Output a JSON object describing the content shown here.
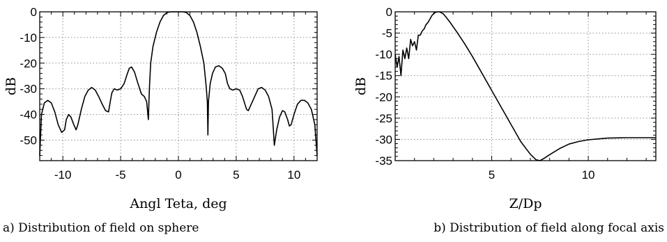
{
  "captions": {
    "left": "a) Distribution of field on sphere",
    "right": "b) Distribution of field along focal axis"
  },
  "chart_data": [
    {
      "type": "line",
      "title": "",
      "xlabel": "Angl  Teta, deg",
      "ylabel": "dB",
      "xlim": [
        -12,
        12
      ],
      "ylim": [
        -58,
        0
      ],
      "xticks": [
        -10,
        -5,
        0,
        5,
        10
      ],
      "xtick_labels": [
        "-10",
        "-5",
        "0",
        "5",
        "10"
      ],
      "yticks": [
        0,
        -10,
        -20,
        -30,
        -40,
        -50
      ],
      "ytick_labels": [
        "0",
        "-10",
        "-20",
        "-30",
        "-40",
        "-50"
      ],
      "grid": true,
      "series": [
        {
          "x": [
            -12.0,
            -11.85,
            -11.6,
            -11.3,
            -11.0,
            -10.7,
            -10.4,
            -10.1,
            -9.85,
            -9.7,
            -9.5,
            -9.3,
            -9.05,
            -8.85,
            -8.7,
            -8.55,
            -8.4,
            -8.1,
            -7.8,
            -7.5,
            -7.2,
            -6.9,
            -6.6,
            -6.3,
            -6.05,
            -5.9,
            -5.75,
            -5.55,
            -5.3,
            -5.0,
            -4.7,
            -4.45,
            -4.25,
            -4.05,
            -3.8,
            -3.5,
            -3.2,
            -2.95,
            -2.75,
            -2.6,
            -2.55,
            -2.5,
            -2.4,
            -2.2,
            -1.9,
            -1.6,
            -1.3,
            -1.0,
            -0.7,
            -0.4,
            -0.2,
            0.0,
            0.2,
            0.4,
            0.7,
            1.0,
            1.3,
            1.6,
            1.9,
            2.2,
            2.4,
            2.5,
            2.55,
            2.6,
            2.75,
            2.95,
            3.2,
            3.5,
            3.8,
            4.05,
            4.25,
            4.45,
            4.7,
            5.0,
            5.3,
            5.55,
            5.75,
            5.9,
            6.05,
            6.3,
            6.6,
            6.9,
            7.2,
            7.5,
            7.8,
            8.1,
            8.2,
            8.3,
            8.5,
            8.75,
            9.0,
            9.2,
            9.45,
            9.6,
            9.75,
            10.0,
            10.3,
            10.6,
            10.9,
            11.2,
            11.5,
            11.8,
            12.0
          ],
          "y": [
            -56,
            -40,
            -35.5,
            -34.5,
            -35.5,
            -39,
            -44,
            -47,
            -46,
            -42,
            -40,
            -41,
            -44,
            -46,
            -44,
            -41,
            -38,
            -33,
            -30.5,
            -29.5,
            -30.5,
            -33,
            -36,
            -38.5,
            -39,
            -35,
            -31.5,
            -30,
            -30.5,
            -30,
            -28,
            -24.5,
            -22,
            -21.5,
            -23.5,
            -28,
            -32,
            -33,
            -35,
            -42,
            -35,
            -29,
            -20,
            -13.5,
            -8,
            -4,
            -1.5,
            -0.3,
            0,
            0,
            0,
            0,
            0,
            0,
            -0.3,
            -1.5,
            -4,
            -8,
            -13.5,
            -20,
            -29,
            -35,
            -48,
            -35,
            -28,
            -24,
            -21.5,
            -21,
            -22,
            -24,
            -28,
            -30,
            -30.5,
            -30,
            -30.5,
            -33,
            -36,
            -38,
            -38.5,
            -36,
            -33,
            -30,
            -29.5,
            -30.5,
            -33,
            -38,
            -45,
            -52,
            -46,
            -41,
            -38.5,
            -39,
            -42,
            -44.5,
            -44,
            -40,
            -36,
            -34.5,
            -34.5,
            -35.5,
            -38,
            -44,
            -56
          ]
        }
      ]
    },
    {
      "type": "line",
      "title": "",
      "xlabel": "Z/Dp",
      "ylabel": "dB",
      "xlim": [
        0,
        13.5
      ],
      "ylim": [
        -35,
        0
      ],
      "xticks": [
        5,
        10
      ],
      "xtick_labels": [
        "5",
        "10"
      ],
      "yticks": [
        0,
        -5,
        -10,
        -15,
        -20,
        -25,
        -30,
        -35
      ],
      "ytick_labels": [
        "0",
        "-5",
        "-10",
        "-15",
        "-20",
        "-25",
        "-30",
        "-35"
      ],
      "grid": true,
      "series": [
        {
          "x": [
            0.0,
            0.1,
            0.2,
            0.3,
            0.4,
            0.5,
            0.6,
            0.7,
            0.8,
            0.9,
            1.0,
            1.1,
            1.2,
            1.3,
            1.4,
            1.5,
            1.6,
            1.7,
            1.8,
            1.9,
            2.0,
            2.1,
            2.2,
            2.3,
            2.5,
            2.8,
            3.2,
            3.6,
            4.0,
            4.5,
            5.0,
            5.5,
            6.0,
            6.5,
            7.0,
            7.3,
            7.5,
            7.7,
            8.0,
            8.5,
            9.0,
            9.5,
            10.0,
            10.5,
            11.0,
            12.0,
            13.5
          ],
          "y": [
            -10,
            -13,
            -10.5,
            -15,
            -9,
            -11,
            -8.5,
            -11,
            -6.5,
            -8,
            -7,
            -9,
            -5.5,
            -5.5,
            -4.5,
            -4,
            -3,
            -2.5,
            -1.7,
            -0.9,
            -0.4,
            -0.1,
            0,
            0,
            -0.5,
            -2.2,
            -4.8,
            -7.5,
            -10.5,
            -14.5,
            -18.5,
            -22.5,
            -26.5,
            -30.5,
            -33.5,
            -34.8,
            -35,
            -34.5,
            -33.6,
            -32.2,
            -31.1,
            -30.5,
            -30.1,
            -29.9,
            -29.7,
            -29.6,
            -29.6
          ]
        }
      ]
    }
  ]
}
